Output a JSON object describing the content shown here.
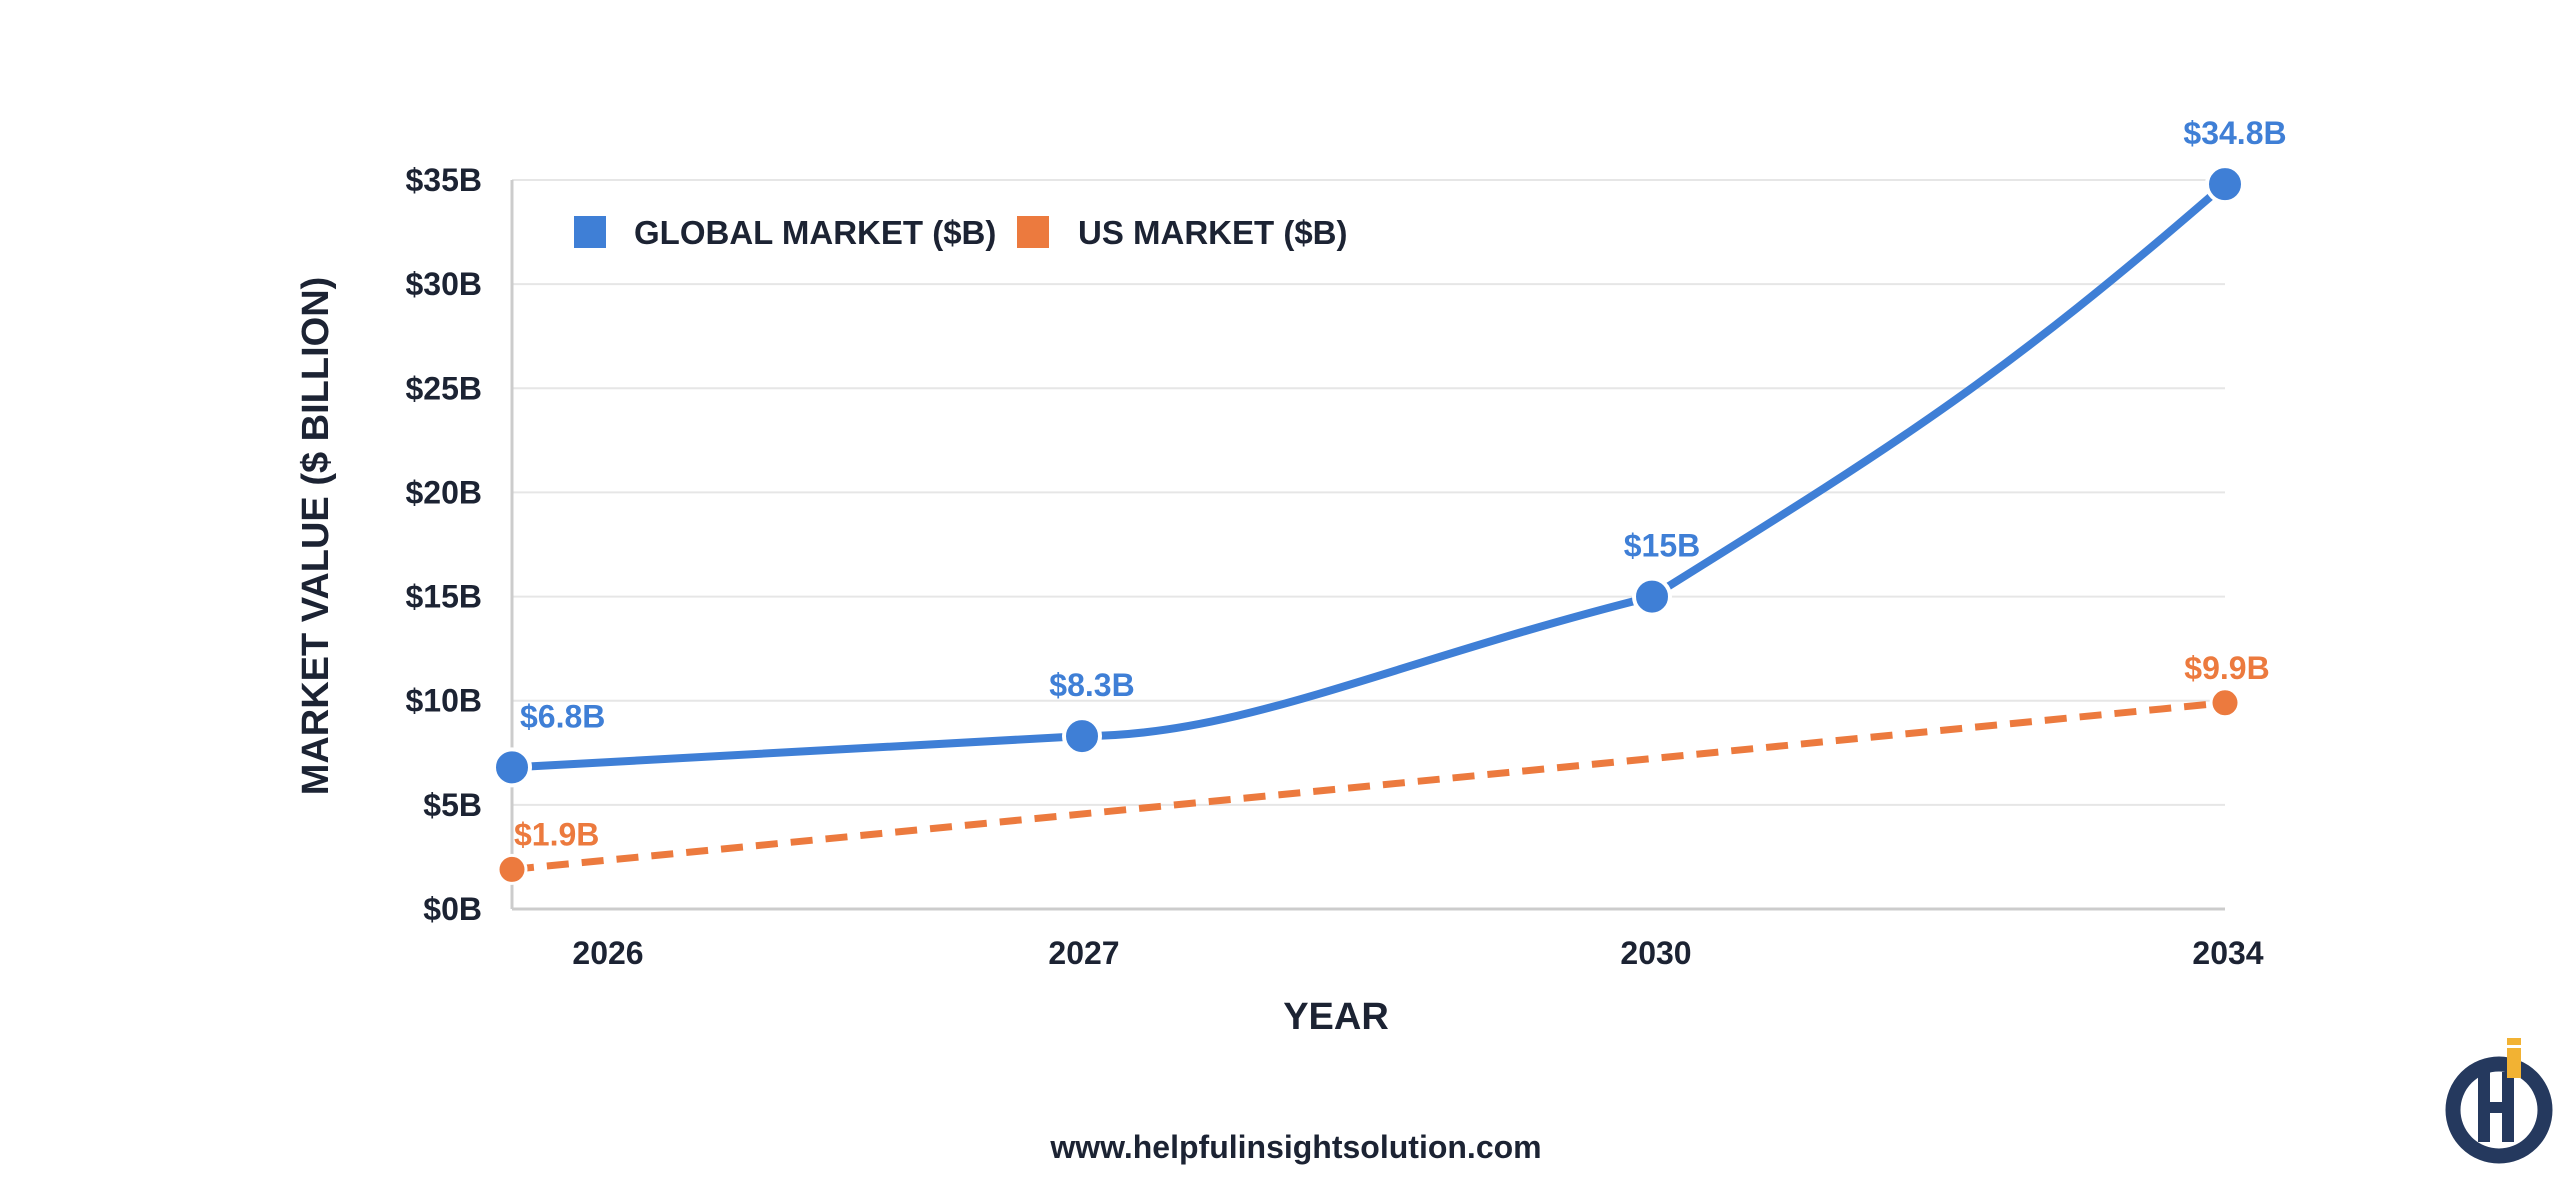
{
  "chart_data": {
    "type": "line",
    "categories": [
      "2026",
      "2027",
      "2030",
      "2034"
    ],
    "series": [
      {
        "name": "GLOBAL MARKET ($B)",
        "values": [
          6.8,
          8.3,
          15,
          34.8
        ],
        "labels": [
          "$6.8B",
          "$8.3B",
          "$15B",
          "$34.8B"
        ],
        "color": "#3f7fd6",
        "line_style": "solid"
      },
      {
        "name": "US MARKET ($B)",
        "values": [
          1.9,
          null,
          null,
          9.9
        ],
        "labels": [
          "$1.9B",
          "",
          "",
          "$9.9B"
        ],
        "color": "#ec7a3e",
        "line_style": "dashed"
      }
    ],
    "title": "",
    "xlabel": "YEAR",
    "ylabel": "MARKET VALUE ($ BILLION)",
    "ylim": [
      0,
      35
    ],
    "y_ticks": [
      0,
      5,
      10,
      15,
      20,
      25,
      30,
      35
    ],
    "y_tick_labels": [
      "$0B",
      "$5B",
      "$10B",
      "$15B",
      "$20B",
      "$25B",
      "$30B",
      "$35B"
    ],
    "grid": true,
    "legend_position": "top-left"
  },
  "footer": {
    "url": "www.helpfulinsightsolution.com"
  },
  "colors": {
    "text": "#1c2333",
    "grid": "#e6e6e6",
    "axis": "#cccccc",
    "logo_navy": "#25395e",
    "logo_gold": "#f2b233"
  },
  "logo_icon": "helpful-insight-logo-icon"
}
